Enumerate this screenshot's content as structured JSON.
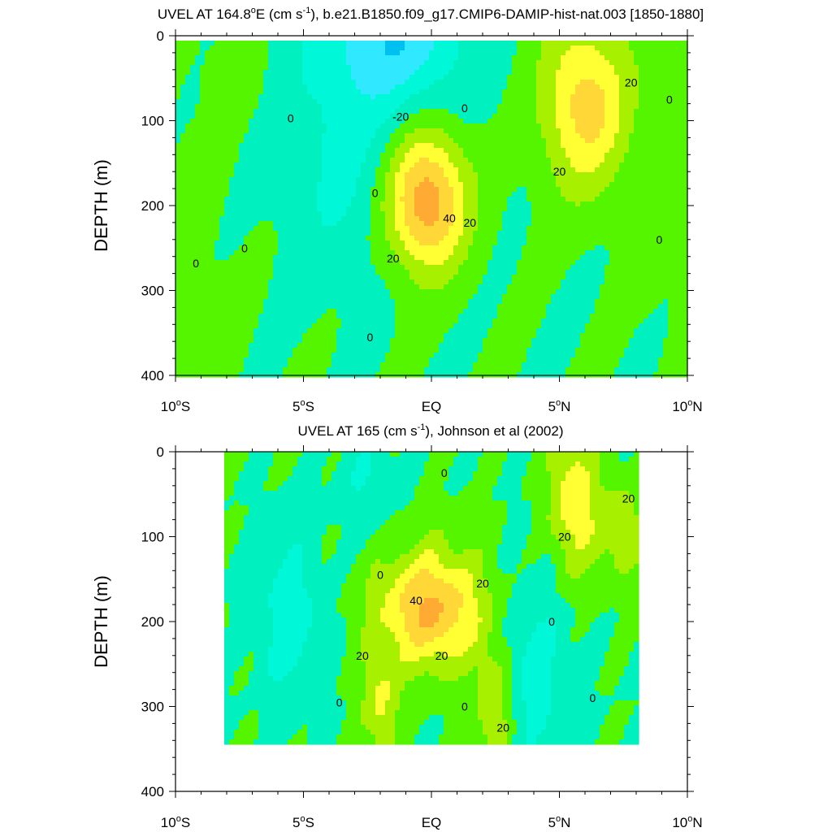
{
  "chart_data": [
    {
      "type": "heatmap",
      "title_parts": [
        "UVEL AT 164.8",
        "o",
        "E (cm s",
        "-1",
        "), b.e21.B1850.f09_g17.CMIP6-DAMIP-hist-nat.003 [1850-1880]"
      ],
      "ylabel": "DEPTH (m)",
      "x_ticks": [
        {
          "value": -10,
          "main": "10",
          "sup": "o",
          "suffix": "S"
        },
        {
          "value": -5,
          "main": "5",
          "sup": "o",
          "suffix": "S"
        },
        {
          "value": 0,
          "main": "EQ",
          "sup": "",
          "suffix": ""
        },
        {
          "value": 5,
          "main": "5",
          "sup": "o",
          "suffix": "N"
        },
        {
          "value": 10,
          "main": "10",
          "sup": "o",
          "suffix": "N"
        }
      ],
      "y_ticks": [
        0,
        100,
        200,
        300,
        400
      ],
      "xlim": [
        -10,
        10
      ],
      "ylim": [
        400,
        0
      ],
      "levels": [
        -40,
        -30,
        -20,
        -10,
        0,
        10,
        20,
        30,
        40,
        50
      ],
      "features": [
        {
          "name": "eastward-core-equator",
          "lon": -0.2,
          "depth": 195,
          "max": 48
        },
        {
          "name": "eastward-core-north",
          "lon": 6.0,
          "depth": 80,
          "max": 35
        },
        {
          "name": "westward-surface",
          "lon": -1.5,
          "depth": 15,
          "min": -28
        },
        {
          "name": "eastward-south",
          "lon": -7.8,
          "depth": 50,
          "max": 6
        }
      ],
      "contour_labels": [
        {
          "text": "0",
          "lon": 1.3,
          "depth": 85
        },
        {
          "text": "-20",
          "lon": -1.2,
          "depth": 95
        },
        {
          "text": "20",
          "lon": 7.8,
          "depth": 55
        },
        {
          "text": "0",
          "lon": 9.3,
          "depth": 75
        },
        {
          "text": "0",
          "lon": -5.5,
          "depth": 97
        },
        {
          "text": "0",
          "lon": -2.2,
          "depth": 185
        },
        {
          "text": "20",
          "lon": 5.0,
          "depth": 160
        },
        {
          "text": "40",
          "lon": 0.7,
          "depth": 215
        },
        {
          "text": "20",
          "lon": 1.5,
          "depth": 220
        },
        {
          "text": "20",
          "lon": -1.5,
          "depth": 262
        },
        {
          "text": "0",
          "lon": -7.3,
          "depth": 250
        },
        {
          "text": "0",
          "lon": -9.2,
          "depth": 268
        },
        {
          "text": "0",
          "lon": 8.9,
          "depth": 240
        },
        {
          "text": "0",
          "lon": -2.4,
          "depth": 355
        }
      ]
    },
    {
      "type": "heatmap",
      "title_parts": [
        "UVEL AT 165 (cm s",
        "-1",
        "), Johnson et al (2002)"
      ],
      "ylabel": "DEPTH (m)",
      "x_ticks": [
        {
          "value": -10,
          "main": "10",
          "sup": "o",
          "suffix": "S"
        },
        {
          "value": -5,
          "main": "5",
          "sup": "o",
          "suffix": "S"
        },
        {
          "value": 0,
          "main": "EQ",
          "sup": "",
          "suffix": ""
        },
        {
          "value": 5,
          "main": "5",
          "sup": "o",
          "suffix": "N"
        },
        {
          "value": 10,
          "main": "10",
          "sup": "o",
          "suffix": "N"
        }
      ],
      "y_ticks": [
        0,
        100,
        200,
        300,
        400
      ],
      "xlim": [
        -10,
        10
      ],
      "ylim": [
        400,
        0
      ],
      "data_lon_range": [
        -8,
        8
      ],
      "data_depth_range": [
        0,
        345
      ],
      "levels": [
        -40,
        -30,
        -20,
        -10,
        0,
        10,
        20,
        30,
        40,
        50
      ],
      "features": [
        {
          "name": "eastward-core-equator",
          "lon": 0.0,
          "depth": 185,
          "max": 42
        },
        {
          "name": "eastward-core-north",
          "lon": 5.5,
          "depth": 60,
          "max": 28
        },
        {
          "name": "westward-south",
          "lon": -5.5,
          "depth": 200,
          "min": -16
        }
      ],
      "contour_labels": [
        {
          "text": "0",
          "lon": 0.5,
          "depth": 25
        },
        {
          "text": "20",
          "lon": 7.7,
          "depth": 55
        },
        {
          "text": "20",
          "lon": 5.2,
          "depth": 100
        },
        {
          "text": "0",
          "lon": -2.0,
          "depth": 145
        },
        {
          "text": "40",
          "lon": -0.6,
          "depth": 175
        },
        {
          "text": "20",
          "lon": 2.0,
          "depth": 155
        },
        {
          "text": "0",
          "lon": 4.7,
          "depth": 200
        },
        {
          "text": "20",
          "lon": -2.7,
          "depth": 240
        },
        {
          "text": "20",
          "lon": 0.4,
          "depth": 240
        },
        {
          "text": "0",
          "lon": -3.6,
          "depth": 295
        },
        {
          "text": "0",
          "lon": 1.3,
          "depth": 300
        },
        {
          "text": "20",
          "lon": 2.8,
          "depth": 325
        },
        {
          "text": "0",
          "lon": 6.3,
          "depth": 290
        }
      ]
    }
  ]
}
